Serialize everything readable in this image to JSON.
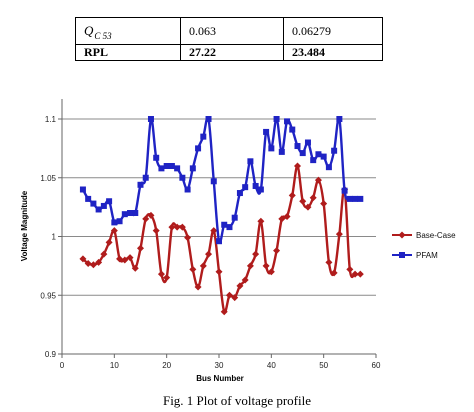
{
  "table": {
    "row1": {
      "label_main": "Q",
      "label_sub": "C 53",
      "col2": "0.063",
      "col3": "0.06279"
    },
    "row2": {
      "label": "RPL",
      "col2": "27.22",
      "col3": "23.484"
    }
  },
  "caption": "Fig. 1  Plot of voltage profile",
  "chart_data": {
    "type": "line",
    "title": "",
    "xlabel": "Bus Number",
    "ylabel": "Voltage Magnitude",
    "xlim": [
      0,
      60
    ],
    "ylim": [
      0.9,
      1.1
    ],
    "xticks": [
      "0",
      "10",
      "20",
      "30",
      "40",
      "50",
      "60"
    ],
    "yticks": [
      "0.9",
      "0.95",
      "1",
      "1.05",
      "1.1"
    ],
    "grid": "horizontal",
    "legend_position": "right",
    "x": [
      4,
      5,
      6,
      7,
      8,
      9,
      10,
      11,
      12,
      13,
      14,
      15,
      16,
      17,
      18,
      19,
      20,
      21,
      22,
      23,
      24,
      25,
      26,
      27,
      28,
      29,
      30,
      31,
      32,
      33,
      34,
      35,
      36,
      37,
      38,
      39,
      40,
      41,
      42,
      43,
      44,
      45,
      46,
      47,
      48,
      49,
      50,
      51,
      52,
      53,
      54,
      55,
      56,
      57
    ],
    "series": [
      {
        "name": "Base-Case",
        "color": "#b01c1c",
        "marker": "diamond",
        "values": [
          0.981,
          0.977,
          0.976,
          0.978,
          0.985,
          0.995,
          1.005,
          0.981,
          0.98,
          0.982,
          0.973,
          0.99,
          1.015,
          1.018,
          1.005,
          0.968,
          0.965,
          1.008,
          1.008,
          1.008,
          0.999,
          0.972,
          0.957,
          0.975,
          0.985,
          1.005,
          0.97,
          0.936,
          0.95,
          0.948,
          0.958,
          0.963,
          0.975,
          0.985,
          1.013,
          0.975,
          0.97,
          0.988,
          1.015,
          1.017,
          1.035,
          1.06,
          1.03,
          1.025,
          1.033,
          1.048,
          1.028,
          0.978,
          0.969,
          1.002,
          1.04,
          0.972,
          0.968,
          0.968
        ]
      },
      {
        "name": "PFAM",
        "color": "#1f23c4",
        "marker": "square",
        "values": [
          1.04,
          1.032,
          1.028,
          1.023,
          1.026,
          1.03,
          1.012,
          1.013,
          1.019,
          1.02,
          1.02,
          1.044,
          1.05,
          1.1,
          1.067,
          1.058,
          1.06,
          1.06,
          1.058,
          1.05,
          1.04,
          1.058,
          1.075,
          1.085,
          1.1,
          1.047,
          0.996,
          1.01,
          1.008,
          1.016,
          1.037,
          1.042,
          1.064,
          1.043,
          1.04,
          1.089,
          1.075,
          1.1,
          1.072,
          1.098,
          1.091,
          1.077,
          1.071,
          1.08,
          1.065,
          1.07,
          1.068,
          1.059,
          1.073,
          1.1,
          1.039,
          1.032,
          1.032,
          1.032
        ]
      }
    ]
  }
}
